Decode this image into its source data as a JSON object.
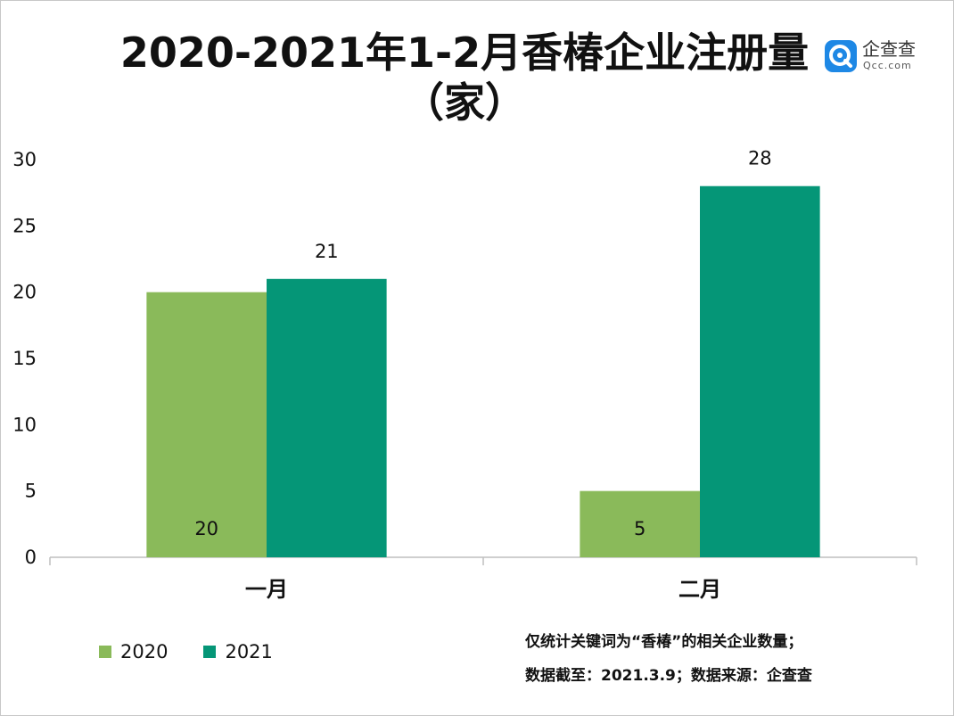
{
  "colors": {
    "series_2020": "#8aba5a",
    "series_2021": "#059677",
    "logo_blue": "#1e88e5"
  },
  "logo": {
    "name_cn": "企查查",
    "name_en": "Qcc.com",
    "icon": "qcc-logo-icon"
  },
  "notes": {
    "line1": "仅统计关键词为“香椿”的相关企业数量；",
    "line2": "数据截至：2021.3.9；数据来源：企查查"
  },
  "chart_data": {
    "type": "bar",
    "title": "2020-2021年1-2月香椿企业注册量（家）",
    "title_line1": "2020-2021年1-2月香椿企业注册量",
    "title_line2": "（家）",
    "categories": [
      "一月",
      "二月"
    ],
    "series": [
      {
        "name": "2020",
        "values": [
          20,
          5
        ]
      },
      {
        "name": "2021",
        "values": [
          21,
          28
        ]
      }
    ],
    "yticks": [
      0,
      5,
      10,
      15,
      20,
      25,
      30
    ],
    "ylim": [
      0,
      30
    ],
    "xlabel": "",
    "ylabel": "",
    "legend_position": "bottom-left",
    "grid": false
  }
}
